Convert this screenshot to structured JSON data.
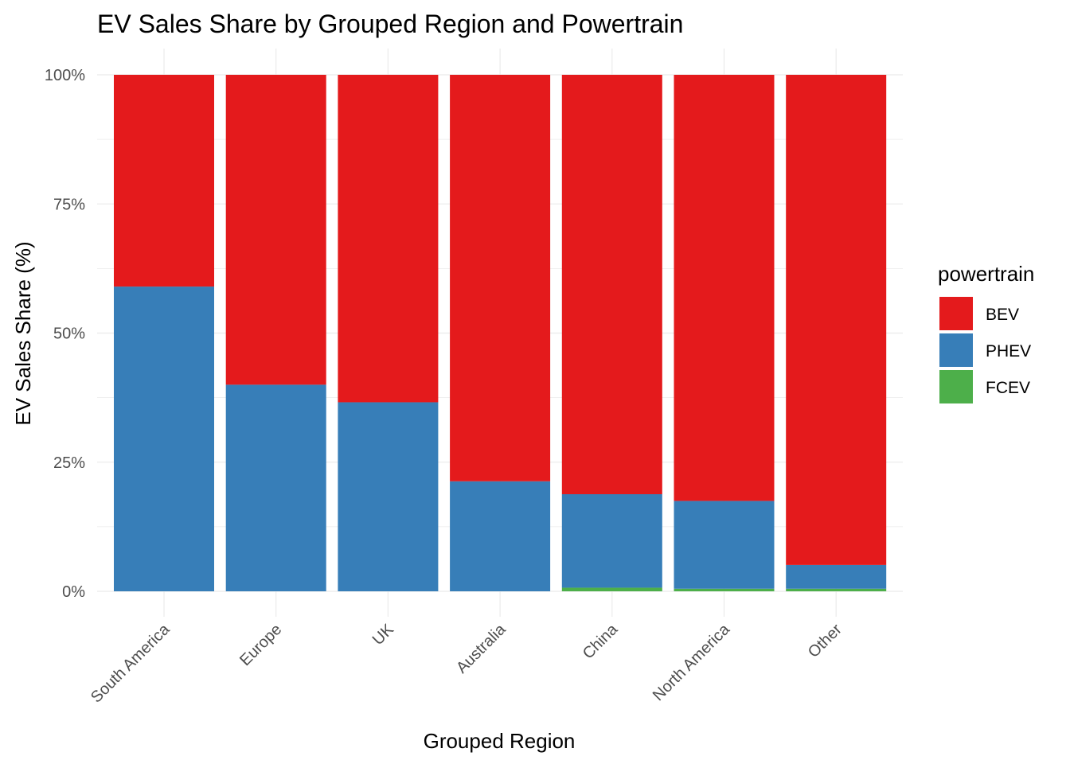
{
  "chart_data": {
    "type": "bar",
    "stacked": true,
    "normalized": true,
    "title": "EV Sales Share by Grouped Region and Powertrain",
    "xlabel": "Grouped Region",
    "ylabel": "EV Sales Share (%)",
    "ylim": [
      0,
      100
    ],
    "y_ticks": [
      "0%",
      "25%",
      "50%",
      "75%",
      "100%"
    ],
    "y_tick_values": [
      0,
      25,
      50,
      75,
      100
    ],
    "categories": [
      "South America",
      "Europe",
      "UK",
      "Australia",
      "China",
      "North America",
      "Other"
    ],
    "series": [
      {
        "name": "FCEV",
        "color": "#4daf4a",
        "values": [
          0,
          0,
          0,
          0,
          0.7,
          0.5,
          0.5
        ]
      },
      {
        "name": "PHEV",
        "color": "#377eb8",
        "values": [
          59.0,
          40.0,
          36.6,
          21.3,
          18.1,
          17.0,
          4.6
        ]
      },
      {
        "name": "BEV",
        "color": "#e41a1c",
        "values": [
          41.0,
          60.0,
          63.4,
          78.7,
          81.2,
          82.5,
          94.9
        ]
      }
    ],
    "legend": {
      "title": "powertrain",
      "placement": "right",
      "order": [
        "BEV",
        "PHEV",
        "FCEV"
      ]
    },
    "grid": true,
    "grid_color": "#ebebeb"
  }
}
